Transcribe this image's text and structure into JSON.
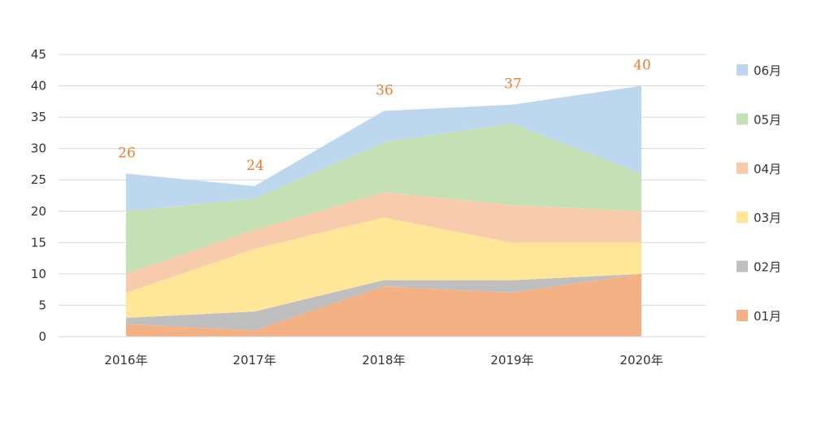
{
  "chart_data": {
    "type": "area",
    "stacked": true,
    "categories": [
      "2016年",
      "2017年",
      "2018年",
      "2019年",
      "2020年"
    ],
    "series": [
      {
        "name": "01月",
        "values": [
          2,
          1,
          8,
          7,
          10
        ],
        "color": "#f4b183"
      },
      {
        "name": "02月",
        "values": [
          1,
          3,
          1,
          2,
          0
        ],
        "color": "#bfbfbf"
      },
      {
        "name": "03月",
        "values": [
          4,
          10,
          10,
          6,
          5
        ],
        "color": "#ffe699"
      },
      {
        "name": "04月",
        "values": [
          3,
          3,
          4,
          6,
          5
        ],
        "color": "#f8cbad"
      },
      {
        "name": "05月",
        "values": [
          10,
          5,
          8,
          13,
          6
        ],
        "color": "#c5e0b4"
      },
      {
        "name": "06月",
        "values": [
          6,
          2,
          5,
          3,
          14
        ],
        "color": "#bdd7ee"
      }
    ],
    "totals": [
      "26",
      "24",
      "36",
      "37",
      "40"
    ],
    "yticks": [
      "0",
      "5",
      "10",
      "15",
      "20",
      "25",
      "30",
      "35",
      "40",
      "45"
    ],
    "ylim": [
      0,
      45
    ],
    "grid": true,
    "legend_position": "right",
    "legend_order": "reverse",
    "total_label_color": "#ed7d31"
  }
}
